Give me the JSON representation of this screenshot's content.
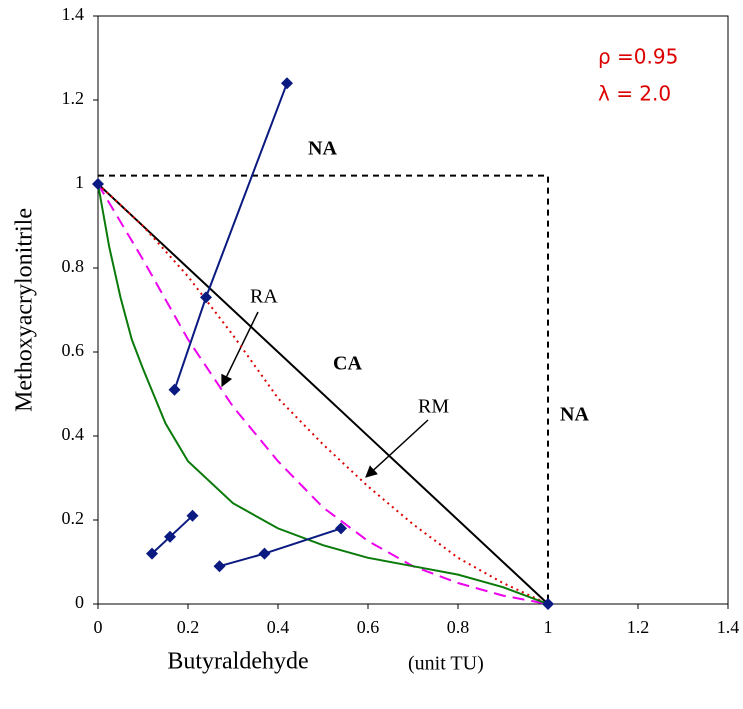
{
  "chart_data": {
    "type": "line",
    "xlabel": "Butyraldehyde",
    "xlabel_unit": "(unit TU)",
    "ylabel": "Methoxyacrylonitrile",
    "annotations": [
      "ρ =0.95",
      "λ = 2.0",
      "NA",
      "NA",
      "CA",
      "RA",
      "RM"
    ],
    "xlim": [
      0,
      1.4
    ],
    "ylim": [
      0,
      1.4
    ],
    "xticks": [
      0,
      0.2,
      0.4,
      0.6,
      0.8,
      1,
      1.2,
      1.4
    ],
    "yticks": [
      0,
      0.2,
      0.4,
      0.6,
      0.8,
      1,
      1.2,
      1.4
    ],
    "series": [
      {
        "color": "#000000",
        "dash": "6,5",
        "x": [
          0,
          1,
          1
        ],
        "values": [
          1.02,
          1.02,
          0
        ]
      },
      {
        "color": "#000000",
        "x": [
          0,
          1
        ],
        "values": [
          1,
          0
        ]
      },
      {
        "color": "#dd0000",
        "dash": "2,4",
        "x": [
          0,
          0.1,
          0.2,
          0.3,
          0.4,
          0.5,
          0.6,
          0.7,
          0.8,
          0.9,
          1
        ],
        "values": [
          1,
          0.9,
          0.78,
          0.64,
          0.49,
          0.38,
          0.28,
          0.19,
          0.11,
          0.05,
          0
        ]
      },
      {
        "color": "#ee00ee",
        "dash": "12,7",
        "x": [
          0,
          0.1,
          0.2,
          0.3,
          0.4,
          0.5,
          0.6,
          0.7,
          0.8,
          0.9,
          1
        ],
        "values": [
          1,
          0.82,
          0.63,
          0.47,
          0.34,
          0.23,
          0.15,
          0.09,
          0.05,
          0.02,
          0
        ]
      },
      {
        "color": "#0a7a0a",
        "x": [
          0,
          0.025,
          0.05,
          0.075,
          0.1,
          0.15,
          0.2,
          0.3,
          0.4,
          0.5,
          0.6,
          0.7,
          0.8,
          0.9,
          1
        ],
        "values": [
          1,
          0.85,
          0.73,
          0.63,
          0.56,
          0.43,
          0.34,
          0.24,
          0.18,
          0.14,
          0.11,
          0.09,
          0.07,
          0.04,
          0
        ]
      },
      {
        "color": "#0a1a80",
        "marker": "diamond",
        "x": [
          0.17,
          0.24,
          0.42
        ],
        "values": [
          0.51,
          0.73,
          1.24
        ]
      },
      {
        "color": "#0a1a80",
        "marker": "diamond",
        "x": [
          0.12,
          0.16,
          0.21
        ],
        "values": [
          0.12,
          0.16,
          0.21
        ]
      },
      {
        "color": "#0a1a80",
        "marker": "diamond",
        "x": [
          0.27,
          0.37,
          0.54
        ],
        "values": [
          0.09,
          0.12,
          0.18
        ]
      },
      {
        "color": "#0a1a80",
        "marker": "diamond",
        "line": false,
        "x": [
          0,
          1
        ],
        "values": [
          1,
          0
        ]
      }
    ]
  }
}
